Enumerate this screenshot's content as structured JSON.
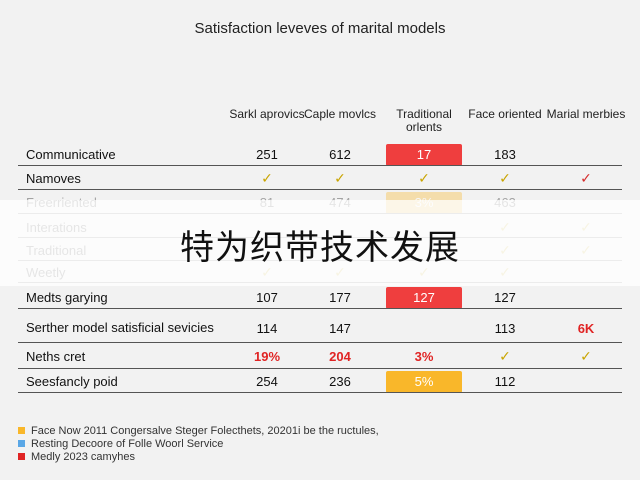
{
  "title": "Satisfaction leveves of marital models",
  "colors": {
    "red_highlight": "#ef3e3e",
    "orange_highlight": "#f9b72a",
    "check": "#c9a400",
    "red_check": "#d52b2b"
  },
  "chart_data": {
    "type": "table",
    "columns": [
      "Sarkl aprovics",
      "Caple movlcs",
      "Traditional orlents",
      "Face oriented",
      "Marial merbies"
    ],
    "rows": [
      {
        "label": "Communicative",
        "cells": [
          "251",
          "612",
          "17",
          "183",
          ""
        ],
        "highlight": [
          null,
          null,
          "red",
          null,
          null
        ]
      },
      {
        "label": "Namoves",
        "cells": [
          "✓",
          "✓",
          "✓",
          "✓",
          "✓"
        ],
        "checks": [
          true,
          true,
          true,
          true,
          true
        ],
        "red_checks": [
          false,
          false,
          false,
          false,
          true
        ]
      },
      {
        "label": "Freerriented",
        "cells": [
          "81",
          "474",
          "3%",
          "463",
          ""
        ],
        "highlight": [
          null,
          null,
          "orange",
          null,
          null
        ],
        "faded": true
      },
      {
        "label": "Interations",
        "cells": [
          "",
          "",
          "",
          "✓",
          "✓"
        ],
        "checks": [
          false,
          false,
          false,
          true,
          true
        ],
        "faded": true
      },
      {
        "label": "Traditional",
        "cells": [
          "",
          "",
          "",
          "✓",
          "✓"
        ],
        "checks": [
          false,
          false,
          false,
          true,
          true
        ],
        "faded": true
      },
      {
        "label": "Weetly",
        "cells": [
          "✓",
          "✓",
          "✓",
          "✓",
          ""
        ],
        "checks": [
          true,
          true,
          true,
          true,
          false
        ],
        "faded": true
      },
      {
        "label": "Medts garying",
        "cells": [
          "107",
          "177",
          "127",
          "127",
          ""
        ],
        "highlight": [
          null,
          null,
          "red",
          null,
          null
        ]
      },
      {
        "label": "Serther model satisficial sevicies",
        "cells": [
          "114",
          "147",
          "",
          "113",
          "6K"
        ],
        "red_text": [
          false,
          false,
          false,
          false,
          true
        ]
      },
      {
        "label": "Neths cret",
        "cells": [
          "19%",
          "204",
          "3%",
          "✓",
          "✓"
        ],
        "red_text": [
          true,
          true,
          true,
          false,
          false
        ],
        "checks": [
          false,
          false,
          false,
          true,
          true
        ]
      },
      {
        "label": "Seesfancly poid",
        "cells": [
          "254",
          "236",
          "5%",
          "112",
          ""
        ],
        "highlight": [
          null,
          null,
          "orange",
          null,
          null
        ]
      }
    ]
  },
  "overlay_text": "特为织带技术发展",
  "legend": [
    {
      "label": "Face Now 2011 Congersalve Steger Folecthets, 20201i be the ructules,",
      "color": "#f9b72a"
    },
    {
      "label": "Resting Decoore of Folle Woorl Service",
      "color": "#5aa7e6"
    },
    {
      "label": "Medly 2023 camyhes",
      "color": "#e02424"
    }
  ]
}
